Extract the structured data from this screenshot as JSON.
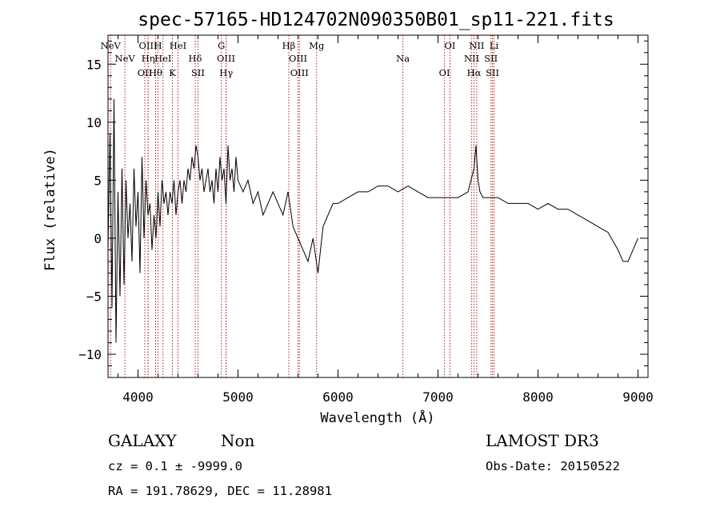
{
  "chart_data": {
    "type": "line",
    "title": "spec-57165-HD124702N090350B01_sp11-221.fits",
    "xlabel": "Wavelength (Å)",
    "ylabel": "Flux (relative)",
    "xlim": [
      3700,
      9100
    ],
    "ylim": [
      -12,
      17.5
    ],
    "xticks": [
      4000,
      5000,
      6000,
      7000,
      8000,
      9000
    ],
    "xtick_labels": [
      "4000",
      "5000",
      "6000",
      "7000",
      "8000",
      "9000"
    ],
    "yticks": [
      -10,
      -5,
      0,
      5,
      10,
      15
    ],
    "ytick_labels": [
      "−10",
      "−5",
      "0",
      "5",
      "10",
      "15"
    ],
    "grid": false,
    "legend": "none",
    "line_color": "#000000",
    "marker_color": "#b22222",
    "series": [
      {
        "x": [
          3700,
          3720,
          3740,
          3760,
          3780,
          3800,
          3820,
          3840,
          3860,
          3880,
          3900,
          3920,
          3940,
          3960,
          3980,
          4000,
          4020,
          4040,
          4060,
          4080,
          4100,
          4120,
          4140,
          4160,
          4180,
          4200,
          4220,
          4240,
          4260,
          4280,
          4300,
          4320,
          4340,
          4360,
          4380,
          4400,
          4420,
          4440,
          4460,
          4480,
          4500,
          4520,
          4540,
          4560,
          4580,
          4600,
          4620,
          4640,
          4660,
          4680,
          4700,
          4720,
          4740,
          4760,
          4780,
          4800,
          4820,
          4840,
          4860,
          4880,
          4900,
          4920,
          4940,
          4960,
          4980,
          5000,
          5050,
          5100,
          5150,
          5200,
          5250,
          5300,
          5350,
          5400,
          5450,
          5500,
          5550,
          5600,
          5650,
          5700,
          5750,
          5800,
          5850,
          5900,
          5950,
          6000,
          6100,
          6200,
          6300,
          6400,
          6500,
          6600,
          6700,
          6800,
          6900,
          7000,
          7100,
          7200,
          7300,
          7360,
          7380,
          7400,
          7420,
          7450,
          7500,
          7600,
          7700,
          7800,
          7900,
          8000,
          8100,
          8200,
          8300,
          8400,
          8500,
          8600,
          8700,
          8800,
          8850,
          8900,
          8950,
          9000
        ],
        "y": [
          -1,
          9,
          -6,
          12,
          -9,
          4,
          -5,
          6,
          -4,
          5,
          0,
          3,
          -2,
          6,
          1,
          4,
          -3,
          7,
          0,
          5,
          2,
          3,
          -1,
          2,
          0,
          4,
          1,
          5,
          3,
          4,
          2,
          4,
          3,
          5,
          2,
          4,
          5,
          3,
          5,
          4,
          6,
          5,
          7,
          6,
          8,
          7,
          5,
          6,
          4,
          5,
          6,
          4,
          5,
          3,
          6,
          4,
          7,
          5,
          6,
          3,
          8,
          5,
          6,
          4,
          7,
          5,
          4,
          5,
          3,
          4,
          2,
          3,
          4,
          3,
          2,
          4,
          1,
          0,
          -1,
          -2,
          0,
          -3,
          1,
          2,
          3,
          3,
          3.5,
          4,
          4,
          4.5,
          4.5,
          4,
          4.5,
          4,
          3.5,
          3.5,
          3.5,
          3.5,
          4,
          6,
          8,
          5,
          4,
          3.5,
          3.5,
          3.5,
          3,
          3,
          3,
          2.5,
          3,
          2.5,
          2.5,
          2,
          1.5,
          1,
          0.5,
          -1,
          -2,
          -2,
          -1,
          0
        ]
      }
    ],
    "spectral_lines": [
      {
        "label": "NeV",
        "wavelength": 3726
      },
      {
        "label": "NeV",
        "wavelength": 3869
      },
      {
        "label": "OII",
        "wavelength": 4068
      },
      {
        "label": "OIII",
        "wavelength": 4100
      },
      {
        "label": "Hη",
        "wavelength": 4102
      },
      {
        "label": "Hθ",
        "wavelength": 4176
      },
      {
        "label": "H",
        "wavelength": 4200
      },
      {
        "label": "HeI",
        "wavelength": 4250
      },
      {
        "label": "K",
        "wavelength": 4344
      },
      {
        "label": "HeI",
        "wavelength": 4400
      },
      {
        "label": "Hδ",
        "wavelength": 4572
      },
      {
        "label": "SII",
        "wavelength": 4600
      },
      {
        "label": "G",
        "wavelength": 4834
      },
      {
        "label": "OIII",
        "wavelength": 4880
      },
      {
        "label": "Hγ",
        "wavelength": 4882
      },
      {
        "label": "Hβ",
        "wavelength": 5508
      },
      {
        "label": "OIII",
        "wavelength": 5600
      },
      {
        "label": "OIII",
        "wavelength": 5614
      },
      {
        "label": "Mg",
        "wavelength": 5786
      },
      {
        "label": "Na",
        "wavelength": 6649
      },
      {
        "label": "OI",
        "wavelength": 7065
      },
      {
        "label": "OI",
        "wavelength": 7120
      },
      {
        "label": "NII",
        "wavelength": 7337
      },
      {
        "label": "Hα",
        "wavelength": 7360
      },
      {
        "label": "NII",
        "wavelength": 7387
      },
      {
        "label": "SII",
        "wavelength": 7530
      },
      {
        "label": "SII",
        "wavelength": 7545
      },
      {
        "label": "Li",
        "wavelength": 7560
      }
    ]
  },
  "footer": {
    "class_label": "GALAXY",
    "subclass_label": "Non",
    "cz_line": "cz = 0.1 ± -9999.0",
    "radec_line": "RA = 191.78629, DEC =  11.28981",
    "survey": "LAMOST DR3",
    "obs_date": "Obs-Date: 20150522"
  }
}
